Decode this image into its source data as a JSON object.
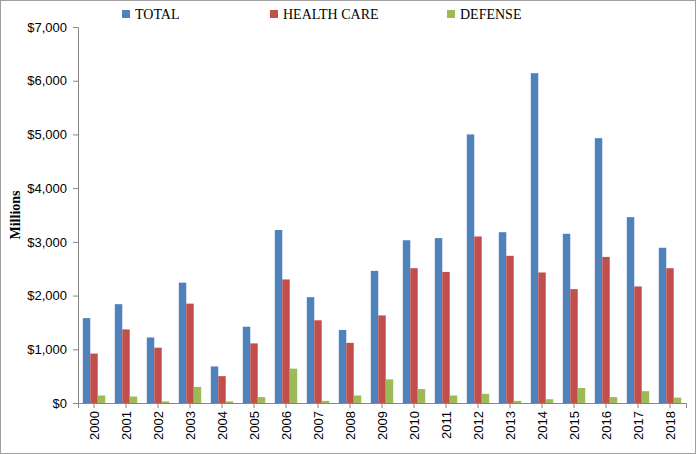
{
  "chart_data": {
    "type": "bar",
    "y_label": "Millions",
    "categories": [
      "2000",
      "2001",
      "2002",
      "2003",
      "2004",
      "2005",
      "2006",
      "2007",
      "2008",
      "2009",
      "2010",
      "2011",
      "2012",
      "2013",
      "2014",
      "2015",
      "2016",
      "2017",
      "2018"
    ],
    "series": [
      {
        "name": "TOTAL",
        "color": "#4f81bd",
        "values": [
          1580,
          1840,
          1220,
          2240,
          680,
          1420,
          3220,
          1970,
          1360,
          2460,
          3030,
          3070,
          5000,
          3180,
          6140,
          3150,
          4930,
          3460,
          2890
        ]
      },
      {
        "name": "HEALTH CARE",
        "color": "#c0504d",
        "values": [
          920,
          1370,
          1030,
          1850,
          500,
          1110,
          2300,
          1540,
          1120,
          1630,
          2510,
          2440,
          3100,
          2740,
          2430,
          2120,
          2720,
          2170,
          2510
        ]
      },
      {
        "name": "DEFENSE",
        "color": "#9bbb59",
        "values": [
          140,
          120,
          30,
          300,
          30,
          110,
          640,
          40,
          140,
          440,
          260,
          140,
          170,
          40,
          70,
          280,
          110,
          220,
          100
        ]
      }
    ],
    "ylim": [
      0,
      7000
    ],
    "yticks": [
      {
        "value": 0,
        "label": "$0"
      },
      {
        "value": 1000,
        "label": "$1,000"
      },
      {
        "value": 2000,
        "label": "$2,000"
      },
      {
        "value": 3000,
        "label": "$3,000"
      },
      {
        "value": 4000,
        "label": "$4,000"
      },
      {
        "value": 5000,
        "label": "$5,000"
      },
      {
        "value": 6000,
        "label": "$6,000"
      },
      {
        "value": 7000,
        "label": "$7,000"
      }
    ],
    "grid": false,
    "legend": "top"
  }
}
